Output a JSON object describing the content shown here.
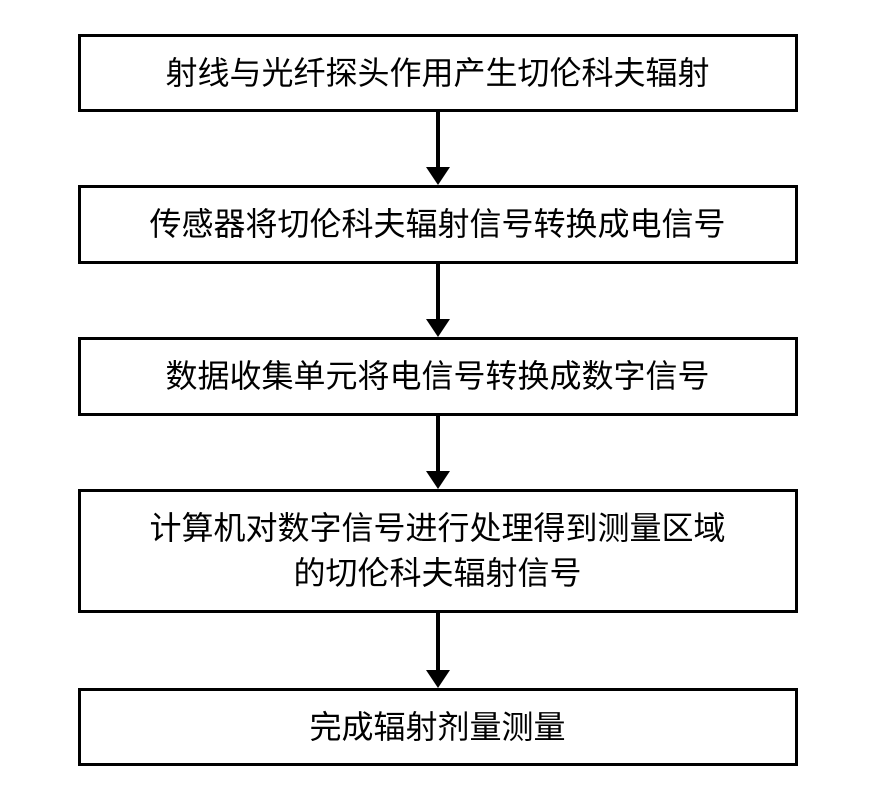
{
  "flowchart": {
    "type": "flowchart",
    "background_color": "#ffffff",
    "node_border_color": "#000000",
    "node_border_width": 3,
    "node_fill": "#ffffff",
    "node_text_color": "#000000",
    "node_fontsize": 32,
    "font_family": "SimSun",
    "arrow_color": "#000000",
    "arrow_shaft_width": 4,
    "arrow_head_width": 24,
    "arrow_head_height": 18,
    "arrows": {
      "a1": {
        "shaft_height": 56
      },
      "a2": {
        "shaft_height": 56
      },
      "a3": {
        "shaft_height": 56
      },
      "a4": {
        "shaft_height": 58
      }
    },
    "nodes": {
      "n1": {
        "text": "射线与光纤探头作用产生切伦科夫辐射",
        "multiline": false
      },
      "n2": {
        "text": "传感器将切伦科夫辐射信号转换成电信号",
        "multiline": false
      },
      "n3": {
        "text": "数据收集单元将电信号转换成数字信号",
        "multiline": false
      },
      "n4": {
        "text": "计算机对数字信号进行处理得到测量区域\n的切伦科夫辐射信号",
        "multiline": true
      },
      "n5": {
        "text": "完成辐射剂量测量",
        "multiline": false
      }
    }
  }
}
